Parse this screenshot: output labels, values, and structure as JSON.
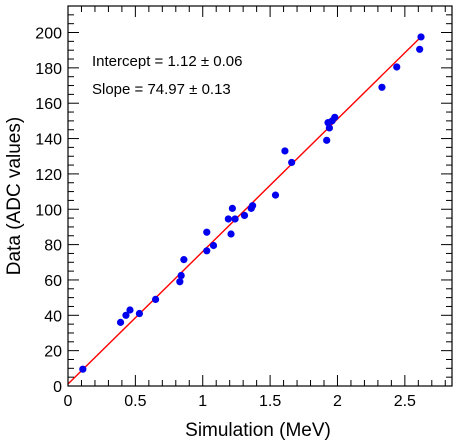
{
  "chart_data": {
    "type": "scatter",
    "xlabel": "Simulation (MeV)",
    "ylabel": "Data (ADC values)",
    "xlim": [
      0,
      2.85
    ],
    "ylim": [
      0,
      215
    ],
    "xticks": [
      0,
      0.5,
      1,
      1.5,
      2,
      2.5
    ],
    "xtick_labels": [
      "0",
      "0.5",
      "1",
      "1.5",
      "2",
      "2.5"
    ],
    "yticks": [
      0,
      20,
      40,
      60,
      80,
      100,
      120,
      140,
      160,
      180,
      200
    ],
    "ytick_labels": [
      "0",
      "20",
      "40",
      "60",
      "80",
      "100",
      "120",
      "140",
      "160",
      "180",
      "200"
    ],
    "grid": false,
    "annotations": [
      "Intercept = 1.12 ± 0.06",
      "Slope = 74.97 ± 0.13"
    ],
    "fit": {
      "intercept": 1.12,
      "slope": 74.97,
      "color": "#ff0000"
    },
    "point_color": "#0000ee",
    "points": [
      {
        "x": 0.11,
        "y": 9.5
      },
      {
        "x": 0.39,
        "y": 36
      },
      {
        "x": 0.43,
        "y": 40
      },
      {
        "x": 0.46,
        "y": 43
      },
      {
        "x": 0.53,
        "y": 41
      },
      {
        "x": 0.65,
        "y": 49
      },
      {
        "x": 0.83,
        "y": 59
      },
      {
        "x": 0.84,
        "y": 62.5
      },
      {
        "x": 0.86,
        "y": 71.5
      },
      {
        "x": 1.03,
        "y": 76.5
      },
      {
        "x": 1.03,
        "y": 87
      },
      {
        "x": 1.08,
        "y": 79.5
      },
      {
        "x": 1.19,
        "y": 94.5
      },
      {
        "x": 1.21,
        "y": 86
      },
      {
        "x": 1.22,
        "y": 100.5
      },
      {
        "x": 1.24,
        "y": 94.5
      },
      {
        "x": 1.31,
        "y": 96.5
      },
      {
        "x": 1.36,
        "y": 100.5
      },
      {
        "x": 1.37,
        "y": 102
      },
      {
        "x": 1.54,
        "y": 108
      },
      {
        "x": 1.61,
        "y": 133
      },
      {
        "x": 1.66,
        "y": 126.5
      },
      {
        "x": 1.92,
        "y": 139
      },
      {
        "x": 1.93,
        "y": 149
      },
      {
        "x": 1.94,
        "y": 146
      },
      {
        "x": 1.96,
        "y": 150
      },
      {
        "x": 1.98,
        "y": 152
      },
      {
        "x": 2.33,
        "y": 169
      },
      {
        "x": 2.44,
        "y": 180.5
      },
      {
        "x": 2.61,
        "y": 190.5
      },
      {
        "x": 2.62,
        "y": 197.5
      }
    ]
  }
}
